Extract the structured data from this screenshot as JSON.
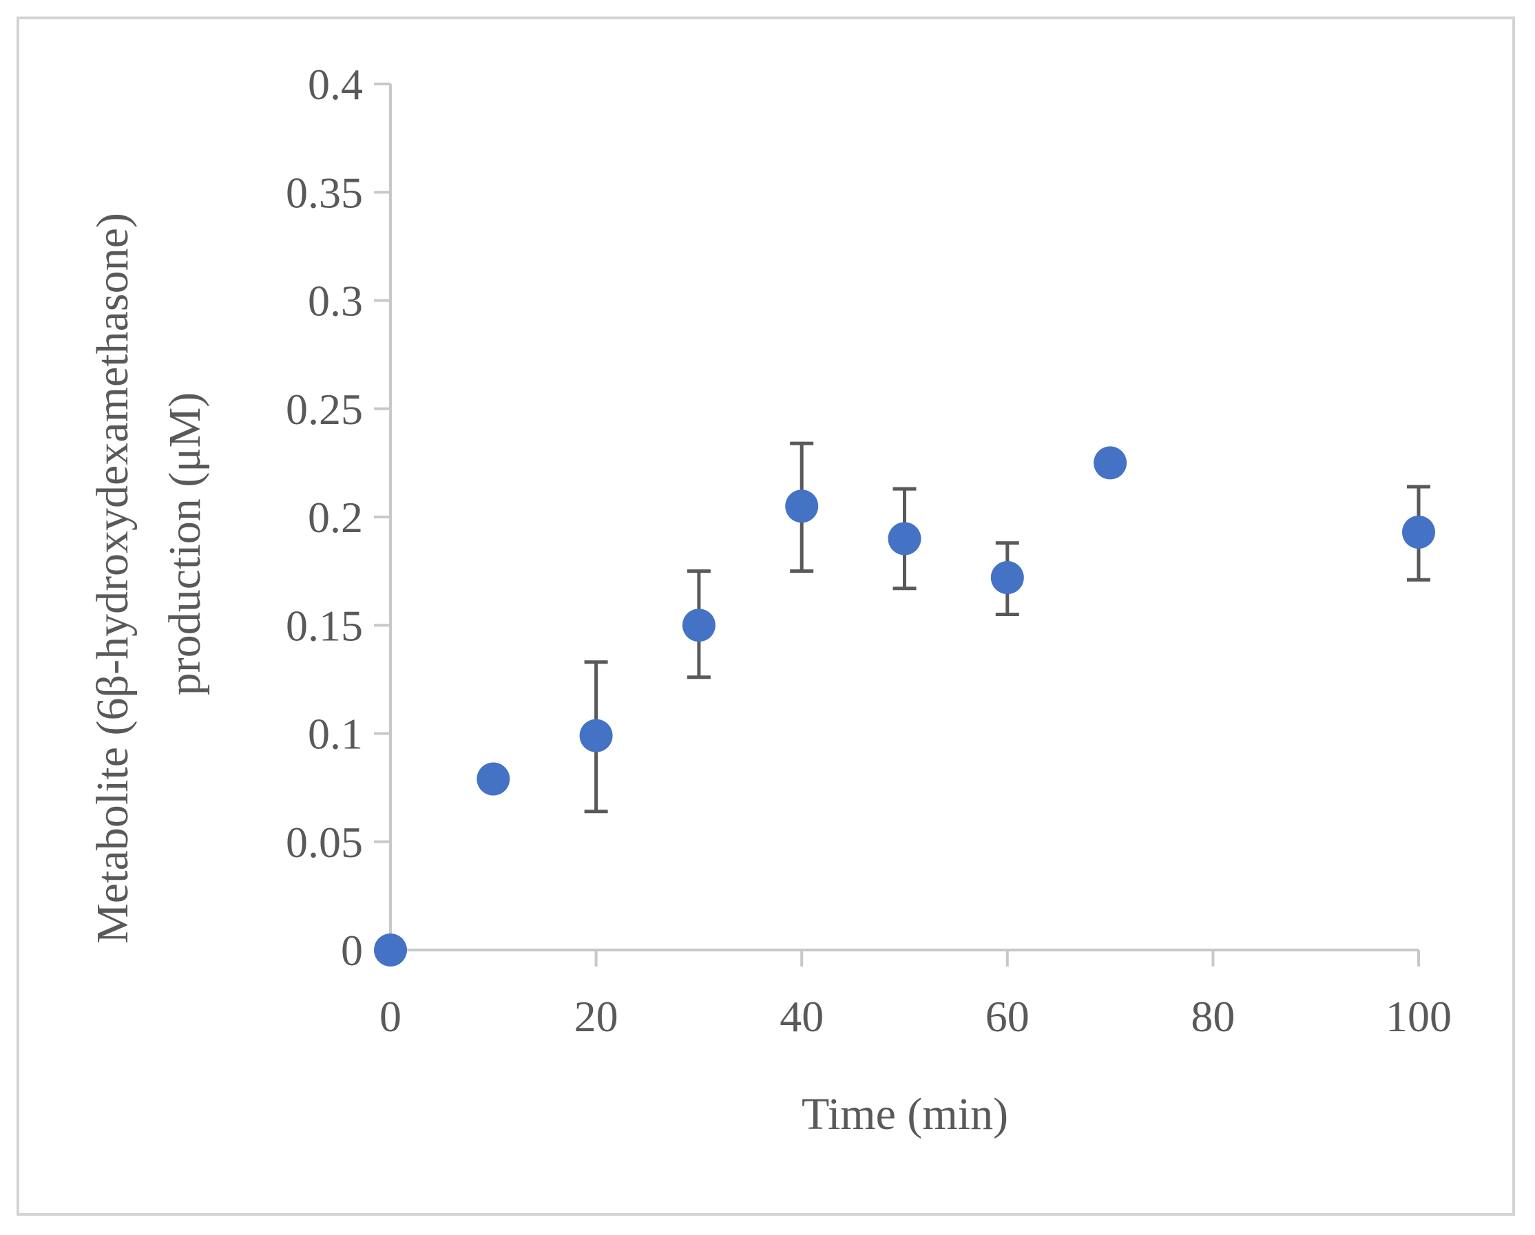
{
  "chart_data": {
    "type": "scatter",
    "title": "",
    "xlabel": "Time (min)",
    "ylabel_lines": [
      "Metabolite (6β-hydroxydexamethasone)",
      "production (μM)"
    ],
    "xlim": [
      0,
      100
    ],
    "ylim": [
      0,
      0.4
    ],
    "x_ticks": [
      0,
      20,
      40,
      60,
      80,
      100
    ],
    "x_tick_labels": [
      "0",
      "20",
      "40",
      "60",
      "80",
      "100"
    ],
    "y_ticks": [
      0,
      0.05,
      0.1,
      0.15,
      0.2,
      0.25,
      0.3,
      0.35,
      0.4
    ],
    "y_tick_labels": [
      "0",
      "0.05",
      "0.1",
      "0.15",
      "0.2",
      "0.25",
      "0.3",
      "0.35",
      "0.4"
    ],
    "grid": false,
    "legend": "none",
    "series": [
      {
        "name": "Metabolite production",
        "color": "#4472c4",
        "points": [
          {
            "x": 0,
            "y": 0.0,
            "err_low": null,
            "err_high": null
          },
          {
            "x": 10,
            "y": 0.079,
            "err_low": null,
            "err_high": null
          },
          {
            "x": 20,
            "y": 0.099,
            "err_low": 0.064,
            "err_high": 0.133
          },
          {
            "x": 30,
            "y": 0.15,
            "err_low": 0.126,
            "err_high": 0.175
          },
          {
            "x": 40,
            "y": 0.205,
            "err_low": 0.175,
            "err_high": 0.234
          },
          {
            "x": 50,
            "y": 0.19,
            "err_low": 0.167,
            "err_high": 0.213
          },
          {
            "x": 60,
            "y": 0.172,
            "err_low": 0.155,
            "err_high": 0.188
          },
          {
            "x": 70,
            "y": 0.225,
            "err_low": null,
            "err_high": null
          },
          {
            "x": 100,
            "y": 0.193,
            "err_low": 0.171,
            "err_high": 0.214
          }
        ]
      }
    ],
    "colors": {
      "axis": "#c8c8c8",
      "text": "#595959",
      "errorbar": "#595959",
      "frame": "#d3d3d3"
    }
  }
}
